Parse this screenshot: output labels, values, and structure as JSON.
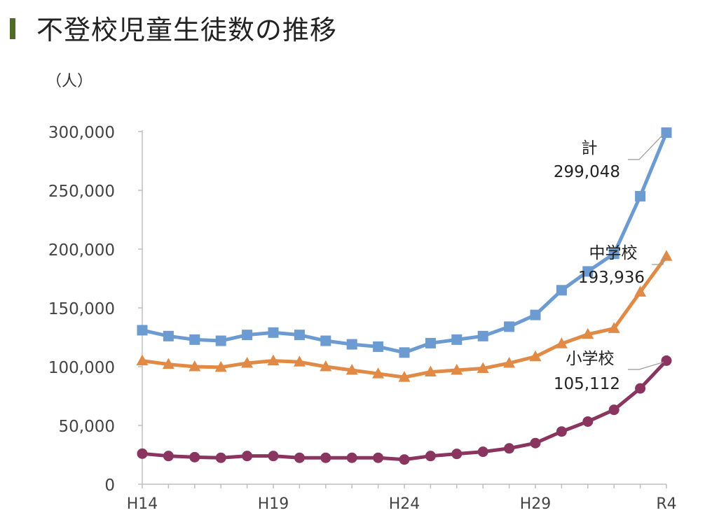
{
  "title": "不登校児童生徒数の推移",
  "unit_label": "（人）",
  "colors": {
    "title_bar": "#4f6b2a",
    "total": "#6b9bd1",
    "middle": "#e08a45",
    "elementary": "#8a3460"
  },
  "chart_data": {
    "type": "line",
    "title": "不登校児童生徒数の推移",
    "ylabel": "（人）",
    "ylim": [
      0,
      300000
    ],
    "yticks": [
      0,
      50000,
      100000,
      150000,
      200000,
      250000,
      300000
    ],
    "ytick_labels": [
      "0",
      "50,000",
      "100,000",
      "150,000",
      "200,000",
      "250,000",
      "300,000"
    ],
    "x": [
      "H14",
      "H15",
      "H16",
      "H17",
      "H18",
      "H19",
      "H20",
      "H21",
      "H22",
      "H23",
      "H24",
      "H25",
      "H26",
      "H27",
      "H28",
      "H29",
      "H30",
      "R1",
      "R2",
      "R3",
      "R4"
    ],
    "xtick_labels": [
      "H14",
      "H19",
      "H24",
      "H29",
      "R4"
    ],
    "grid": false,
    "series": [
      {
        "name": "計",
        "marker": "square",
        "color": "#6b9bd1",
        "end_label": "299,048",
        "values": [
          131000,
          126000,
          123000,
          122000,
          127000,
          129000,
          127000,
          122000,
          119000,
          117000,
          112000,
          120000,
          123000,
          126000,
          134000,
          144000,
          165000,
          181000,
          196000,
          245000,
          299048
        ]
      },
      {
        "name": "中学校",
        "marker": "triangle",
        "color": "#e08a45",
        "end_label": "193,936",
        "values": [
          105000,
          102000,
          100000,
          99500,
          103000,
          105000,
          104000,
          100000,
          97000,
          94000,
          91000,
          95500,
          97000,
          98500,
          103000,
          108500,
          119500,
          127500,
          132500,
          163500,
          193936
        ]
      },
      {
        "name": "小学校",
        "marker": "circle",
        "color": "#8a3460",
        "end_label": "105,112",
        "values": [
          26000,
          24000,
          23000,
          22500,
          24000,
          24000,
          22500,
          22500,
          22500,
          22500,
          21000,
          24000,
          25800,
          27600,
          30500,
          35000,
          44800,
          53300,
          63300,
          81500,
          105112
        ]
      }
    ]
  }
}
